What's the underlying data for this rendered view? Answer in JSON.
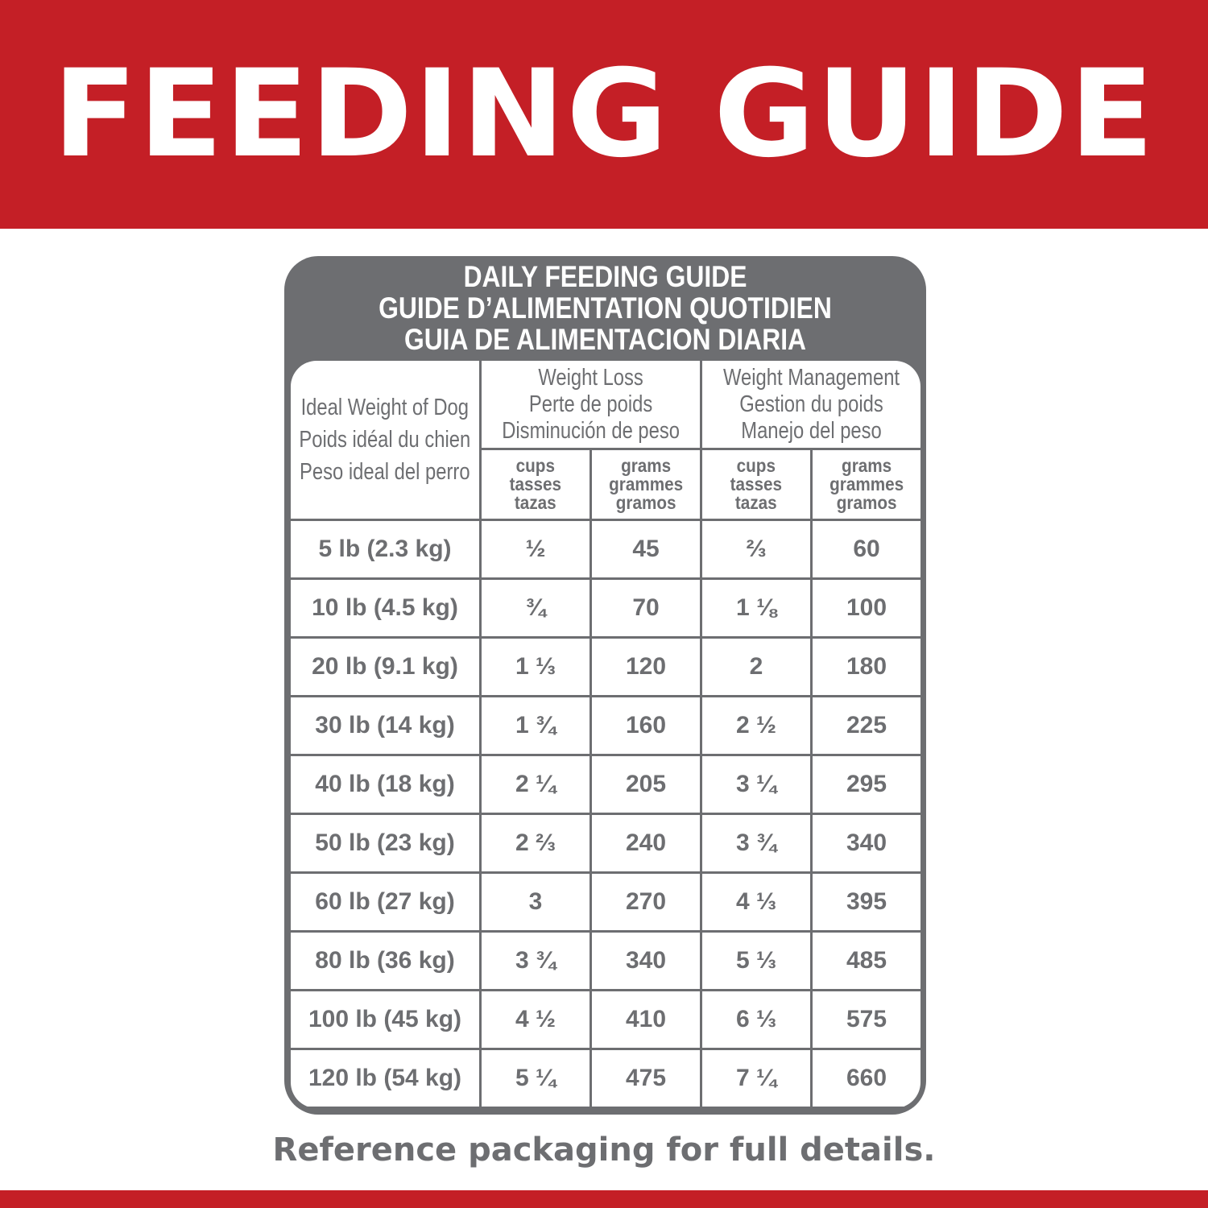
{
  "banner": {
    "title": "FEEDING GUIDE"
  },
  "colors": {
    "red": "#c41f26",
    "gray": "#6d6e71"
  },
  "card": {
    "title_lines": [
      "DAILY FEEDING GUIDE",
      "GUIDE D’ALIMENTATION QUOTIDIEN",
      "GUIA DE ALIMENTACION DIARIA"
    ]
  },
  "table": {
    "weight_header": [
      "Ideal Weight of Dog",
      "Poids idéal du chien",
      "Peso ideal del perro"
    ],
    "groups": [
      {
        "lines": [
          "Weight Loss",
          "Perte de poids",
          "Disminución de peso"
        ]
      },
      {
        "lines": [
          "Weight Management",
          "Gestion du poids",
          "Manejo del peso"
        ]
      }
    ],
    "units": [
      [
        "cups",
        "tasses",
        "tazas"
      ],
      [
        "grams",
        "grammes",
        "gramos"
      ],
      [
        "cups",
        "tasses",
        "tazas"
      ],
      [
        "grams",
        "grammes",
        "gramos"
      ]
    ],
    "rows": [
      [
        "5 lb (2.3 kg)",
        "½",
        "45",
        "⅔",
        "60"
      ],
      [
        "10 lb (4.5 kg)",
        "¾",
        "70",
        "1 ⅛",
        "100"
      ],
      [
        "20 lb (9.1 kg)",
        "1 ⅓",
        "120",
        "2",
        "180"
      ],
      [
        "30 lb (14 kg)",
        "1 ¾",
        "160",
        "2 ½",
        "225"
      ],
      [
        "40 lb (18 kg)",
        "2 ¼",
        "205",
        "3 ¼",
        "295"
      ],
      [
        "50 lb (23 kg)",
        "2 ⅔",
        "240",
        "3 ¾",
        "340"
      ],
      [
        "60 lb (27 kg)",
        "3",
        "270",
        "4 ⅓",
        "395"
      ],
      [
        "80 lb (36 kg)",
        "3 ¾",
        "340",
        "5 ⅓",
        "485"
      ],
      [
        "100 lb (45 kg)",
        "4 ½",
        "410",
        "6 ⅓",
        "575"
      ],
      [
        "120 lb (54 kg)",
        "5 ¼",
        "475",
        "7 ¼",
        "660"
      ]
    ]
  },
  "footer": {
    "text": "Reference packaging for full details."
  }
}
